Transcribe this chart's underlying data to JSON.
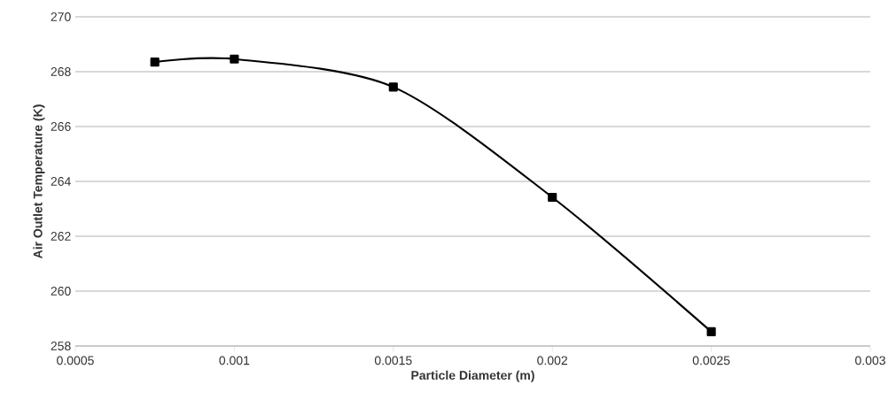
{
  "chart_data": {
    "type": "line",
    "xlabel": "Particle Diameter (m)",
    "ylabel": "Air Outlet Temperature (K)",
    "x": [
      0.00075,
      0.001,
      0.0015,
      0.002,
      0.0025
    ],
    "series": [
      {
        "color": "#000000",
        "values": [
          268.35,
          268.46,
          267.44,
          263.42,
          258.52
        ]
      }
    ],
    "xlim": [
      0.0005,
      0.003
    ],
    "xticks": [
      0.0005,
      0.001,
      0.0015,
      0.002,
      0.0025,
      0.003
    ],
    "ylim": [
      258,
      270
    ],
    "yticks": [
      258,
      260,
      262,
      264,
      266,
      268,
      270
    ],
    "grid": "y",
    "legend": false,
    "marker": "square",
    "line_style": "solid"
  }
}
